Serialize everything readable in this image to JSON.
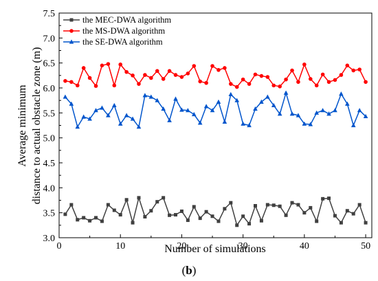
{
  "chart_data": {
    "type": "line",
    "xlabel": "Number of simulations",
    "ylabel_lines": [
      "Average minimum",
      "distance to actual obstacle zone (m)"
    ],
    "xlim": [
      0,
      51
    ],
    "ylim": [
      3.0,
      7.5
    ],
    "x_ticks": [
      0,
      10,
      20,
      30,
      40,
      50
    ],
    "y_ticks": [
      "3.0",
      "3.5",
      "4.0",
      "4.5",
      "5.0",
      "5.5",
      "6.0",
      "6.5",
      "7.0",
      "7.5"
    ],
    "legend_position": "top-left",
    "caption": {
      "open": "(",
      "letter": "b",
      "close": ")"
    },
    "x": [
      1,
      2,
      3,
      4,
      5,
      6,
      7,
      8,
      9,
      10,
      11,
      12,
      13,
      14,
      15,
      16,
      17,
      18,
      19,
      20,
      21,
      22,
      23,
      24,
      25,
      26,
      27,
      28,
      29,
      30,
      31,
      32,
      33,
      34,
      35,
      36,
      37,
      38,
      39,
      40,
      41,
      42,
      43,
      44,
      45,
      46,
      47,
      48,
      49,
      50
    ],
    "series": [
      {
        "name": "the MEC-DWA algorithm",
        "color": "#404040",
        "marker": "square",
        "values": [
          3.47,
          3.66,
          3.36,
          3.4,
          3.34,
          3.4,
          3.33,
          3.66,
          3.55,
          3.46,
          3.76,
          3.3,
          3.8,
          3.42,
          3.54,
          3.72,
          3.8,
          3.45,
          3.46,
          3.53,
          3.35,
          3.62,
          3.39,
          3.52,
          3.43,
          3.33,
          3.58,
          3.7,
          3.25,
          3.43,
          3.28,
          3.64,
          3.34,
          3.66,
          3.65,
          3.63,
          3.45,
          3.7,
          3.66,
          3.5,
          3.6,
          3.33,
          3.78,
          3.79,
          3.44,
          3.3,
          3.54,
          3.48,
          3.66,
          3.3
        ]
      },
      {
        "name": "the MS-DWA algorithm",
        "color": "#ff0000",
        "marker": "circle",
        "values": [
          6.14,
          6.12,
          6.05,
          6.4,
          6.2,
          6.04,
          6.45,
          6.48,
          6.05,
          6.47,
          6.32,
          6.25,
          6.08,
          6.26,
          6.2,
          6.34,
          6.18,
          6.34,
          6.26,
          6.22,
          6.29,
          6.44,
          6.13,
          6.1,
          6.44,
          6.36,
          6.4,
          6.08,
          6.02,
          6.17,
          6.08,
          6.27,
          6.24,
          6.22,
          6.05,
          6.03,
          6.17,
          6.35,
          6.12,
          6.47,
          6.18,
          6.05,
          6.27,
          6.12,
          6.16,
          6.26,
          6.45,
          6.35,
          6.37,
          6.12
        ]
      },
      {
        "name": "the SE-DWA algorithm",
        "color": "#0055cc",
        "marker": "triangle",
        "values": [
          5.82,
          5.68,
          5.22,
          5.42,
          5.38,
          5.55,
          5.6,
          5.45,
          5.65,
          5.28,
          5.45,
          5.38,
          5.22,
          5.85,
          5.82,
          5.75,
          5.58,
          5.35,
          5.78,
          5.56,
          5.55,
          5.47,
          5.3,
          5.63,
          5.55,
          5.72,
          5.32,
          5.87,
          5.75,
          5.28,
          5.25,
          5.58,
          5.72,
          5.82,
          5.65,
          5.48,
          5.9,
          5.48,
          5.45,
          5.28,
          5.27,
          5.5,
          5.55,
          5.48,
          5.55,
          5.88,
          5.68,
          5.25,
          5.55,
          5.43
        ]
      }
    ]
  }
}
